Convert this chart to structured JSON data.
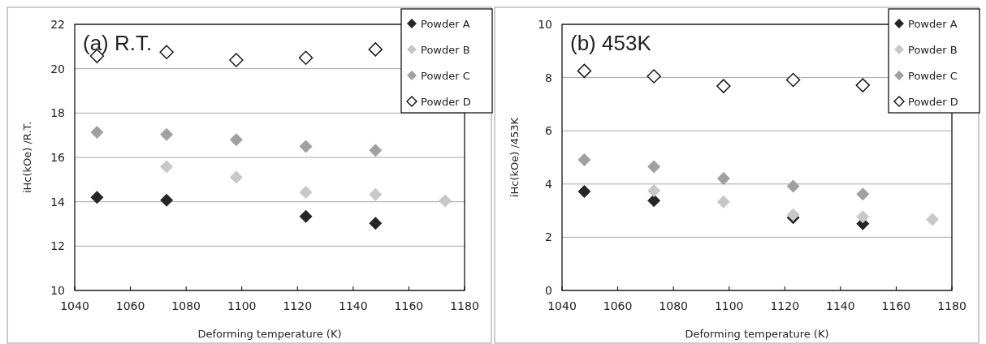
{
  "chart_data": [
    {
      "type": "scatter",
      "title": "(a) R.T.",
      "xlabel": "Deforming temperature (K)",
      "ylabel": "iHc(kOe) /R.T.",
      "xlim": [
        1040,
        1180
      ],
      "xticks": [
        1040,
        1060,
        1080,
        1100,
        1120,
        1140,
        1160,
        1180
      ],
      "ylim": [
        10,
        22
      ],
      "yticks": [
        10,
        12,
        14,
        16,
        18,
        20,
        22
      ],
      "grid": "y",
      "legend": "top right",
      "marker": "diamond",
      "series": [
        {
          "name": "Powder A",
          "color": "#262626",
          "x": [
            1048,
            1073,
            1123,
            1148
          ],
          "values": [
            14.2,
            14.07,
            13.34,
            13.03
          ]
        },
        {
          "name": "Powder B",
          "color": "#c8c8c8",
          "x": [
            1073,
            1098,
            1123,
            1148,
            1173
          ],
          "values": [
            15.58,
            15.1,
            14.43,
            14.33,
            14.04
          ]
        },
        {
          "name": "Powder C",
          "color": "#a0a0a0",
          "x": [
            1048,
            1073,
            1098,
            1123,
            1148
          ],
          "values": [
            17.13,
            17.03,
            16.8,
            16.49,
            16.32
          ]
        },
        {
          "name": "Powder D",
          "color": "#ffffff",
          "x": [
            1048,
            1073,
            1098,
            1123,
            1148
          ],
          "values": [
            20.57,
            20.75,
            20.39,
            20.49,
            20.87
          ]
        }
      ]
    },
    {
      "type": "scatter",
      "title": "(b) 453K",
      "xlabel": "Deforming temperature (K)",
      "ylabel": "iHc(kOe) /453K",
      "xlim": [
        1040,
        1180
      ],
      "xticks": [
        1040,
        1060,
        1080,
        1100,
        1120,
        1140,
        1160,
        1180
      ],
      "ylim": [
        0,
        10
      ],
      "yticks": [
        0,
        2,
        4,
        6,
        8,
        10
      ],
      "grid": "y",
      "legend": "top right",
      "marker": "diamond",
      "series": [
        {
          "name": "Powder A",
          "color": "#262626",
          "x": [
            1048,
            1073,
            1123,
            1148
          ],
          "values": [
            3.72,
            3.38,
            2.74,
            2.51
          ]
        },
        {
          "name": "Powder B",
          "color": "#c8c8c8",
          "x": [
            1073,
            1098,
            1123,
            1148,
            1173
          ],
          "values": [
            3.75,
            3.33,
            2.84,
            2.77,
            2.67
          ]
        },
        {
          "name": "Powder C",
          "color": "#a0a0a0",
          "x": [
            1048,
            1073,
            1098,
            1123,
            1148
          ],
          "values": [
            4.91,
            4.65,
            4.21,
            3.92,
            3.62
          ]
        },
        {
          "name": "Powder D",
          "color": "#ffffff",
          "x": [
            1048,
            1073,
            1098,
            1123,
            1148
          ],
          "values": [
            8.25,
            8.05,
            7.68,
            7.91,
            7.71
          ]
        }
      ]
    }
  ]
}
